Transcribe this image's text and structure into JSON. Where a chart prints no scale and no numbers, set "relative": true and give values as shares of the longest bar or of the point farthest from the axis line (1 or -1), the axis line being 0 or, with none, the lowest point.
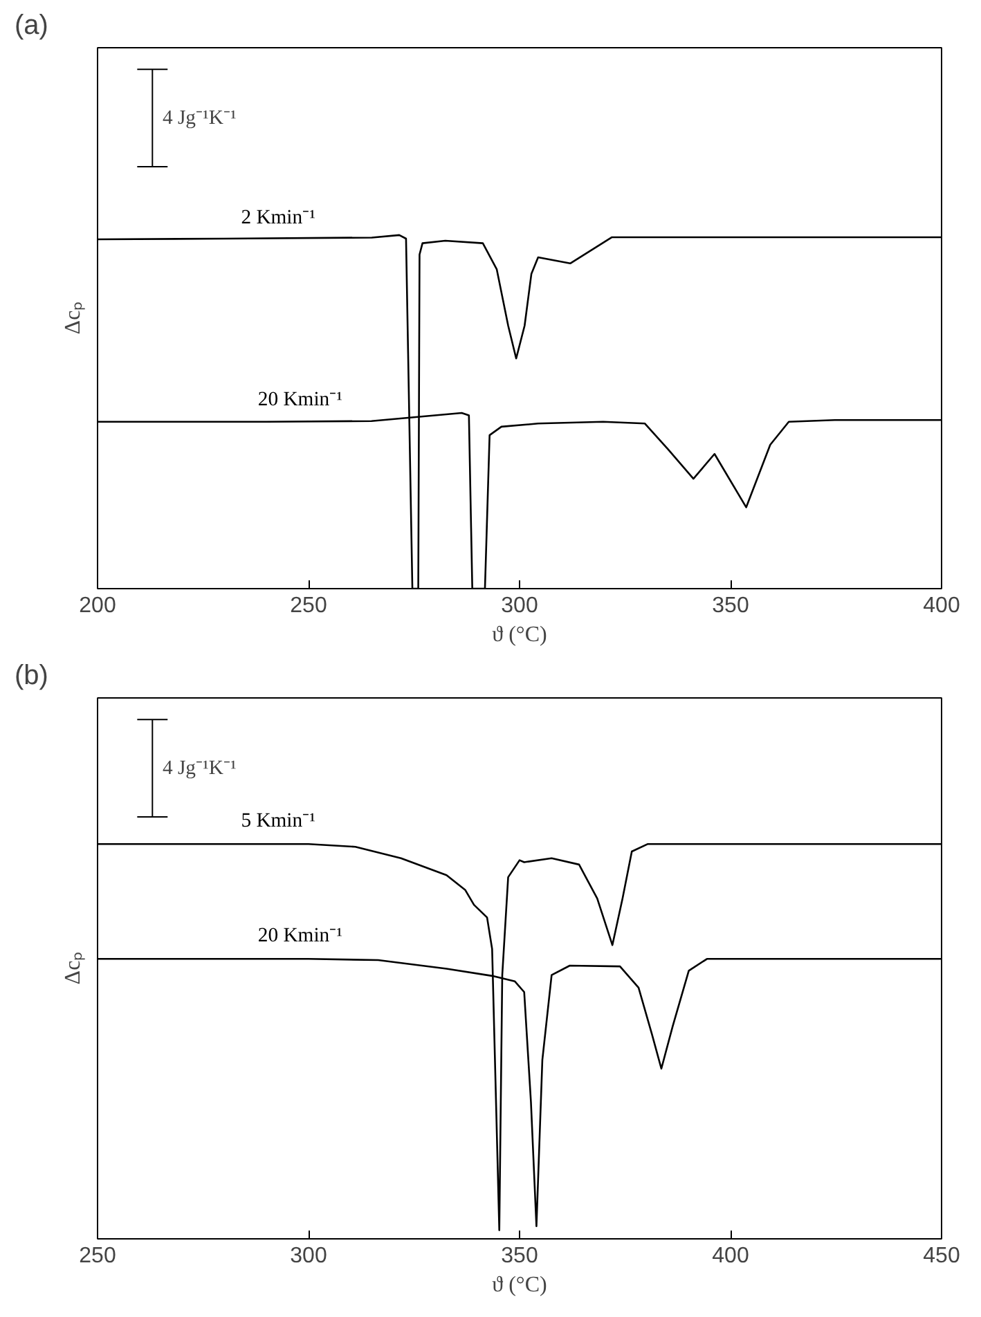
{
  "chart_data": [
    {
      "type": "line",
      "title": "(a)",
      "xlabel": "ϑ (°C)",
      "ylabel": "Δcₚ",
      "relative": true,
      "xlim": [
        200,
        400
      ],
      "xticks": [
        200,
        250,
        300,
        350,
        400
      ],
      "grid": false,
      "marker": "none",
      "line_style": "solid",
      "annotations": [
        "4 Jg⁻¹K⁻¹"
      ],
      "series": [
        {
          "name": "2 Kmin⁻¹",
          "color": "#000000",
          "x": [
            200,
            230,
            265,
            271.5,
            273.1,
            274.6,
            276.0,
            276.3,
            277,
            282.4,
            291.3,
            294.6,
            297.3,
            299.2,
            301.2,
            302.8,
            304.4,
            312,
            321.9,
            350,
            400
          ],
          "values": [
            0.988,
            0.99,
            0.993,
            1.0,
            0.99,
            0,
            0,
            0.945,
            0.977,
            0.984,
            0.977,
            0.903,
            0.744,
            0.651,
            0.744,
            0.89,
            0.937,
            0.92,
            0.994,
            0.994,
            0.994
          ]
        },
        {
          "name": "20 Kmin⁻¹",
          "color": "#000000",
          "x": [
            200,
            240,
            264.9,
            286.3,
            288.0,
            288.8,
            291.8,
            292.9,
            295.7,
            304.4,
            319.8,
            329.7,
            335.2,
            341.2,
            346.2,
            353.7,
            359.4,
            363.8,
            374.7,
            400
          ],
          "values": [
            0.472,
            0.472,
            0.474,
            0.497,
            0.49,
            0,
            0,
            0.434,
            0.458,
            0.467,
            0.472,
            0.467,
            0.394,
            0.311,
            0.381,
            0.23,
            0.407,
            0.472,
            0.477,
            0.477
          ]
        }
      ]
    },
    {
      "type": "line",
      "title": "(b)",
      "xlabel": "ϑ (°C)",
      "ylabel": "Δcₚ",
      "relative": true,
      "xlim": [
        250,
        450
      ],
      "xticks": [
        250,
        300,
        350,
        400,
        450
      ],
      "grid": false,
      "marker": "none",
      "line_style": "solid",
      "annotations": [
        "4 Jg⁻¹K⁻¹"
      ],
      "series": [
        {
          "name": "5 Kmin⁻¹",
          "color": "#000000",
          "x": [
            250,
            300,
            311.1,
            321.9,
            332.7,
            337.1,
            339.2,
            342.3,
            343.5,
            345.2,
            345.9,
            347.3,
            350,
            351.1,
            357.6,
            364.1,
            368.4,
            372.0,
            374.4,
            376.6,
            380.4,
            450
          ],
          "values": [
            1,
            1,
            0.993,
            0.964,
            0.921,
            0.884,
            0.846,
            0.814,
            0.734,
            0.022,
            0.668,
            0.916,
            0.959,
            0.954,
            0.964,
            0.948,
            0.862,
            0.744,
            0.862,
            0.981,
            1,
            1
          ]
        },
        {
          "name": "20 Kmin⁻¹",
          "color": "#000000",
          "x": [
            250,
            300,
            316.5,
            332.7,
            343.5,
            348.9,
            351.1,
            352.7,
            354.0,
            355.4,
            357.6,
            361.9,
            373.8,
            378.2,
            381.4,
            383.6,
            386.3,
            390.1,
            394.4,
            450
          ],
          "values": [
            0.709,
            0.709,
            0.706,
            0.684,
            0.666,
            0.652,
            0.625,
            0.346,
            0.032,
            0.453,
            0.668,
            0.692,
            0.69,
            0.636,
            0.517,
            0.431,
            0.539,
            0.679,
            0.709,
            0.709
          ]
        }
      ]
    }
  ]
}
